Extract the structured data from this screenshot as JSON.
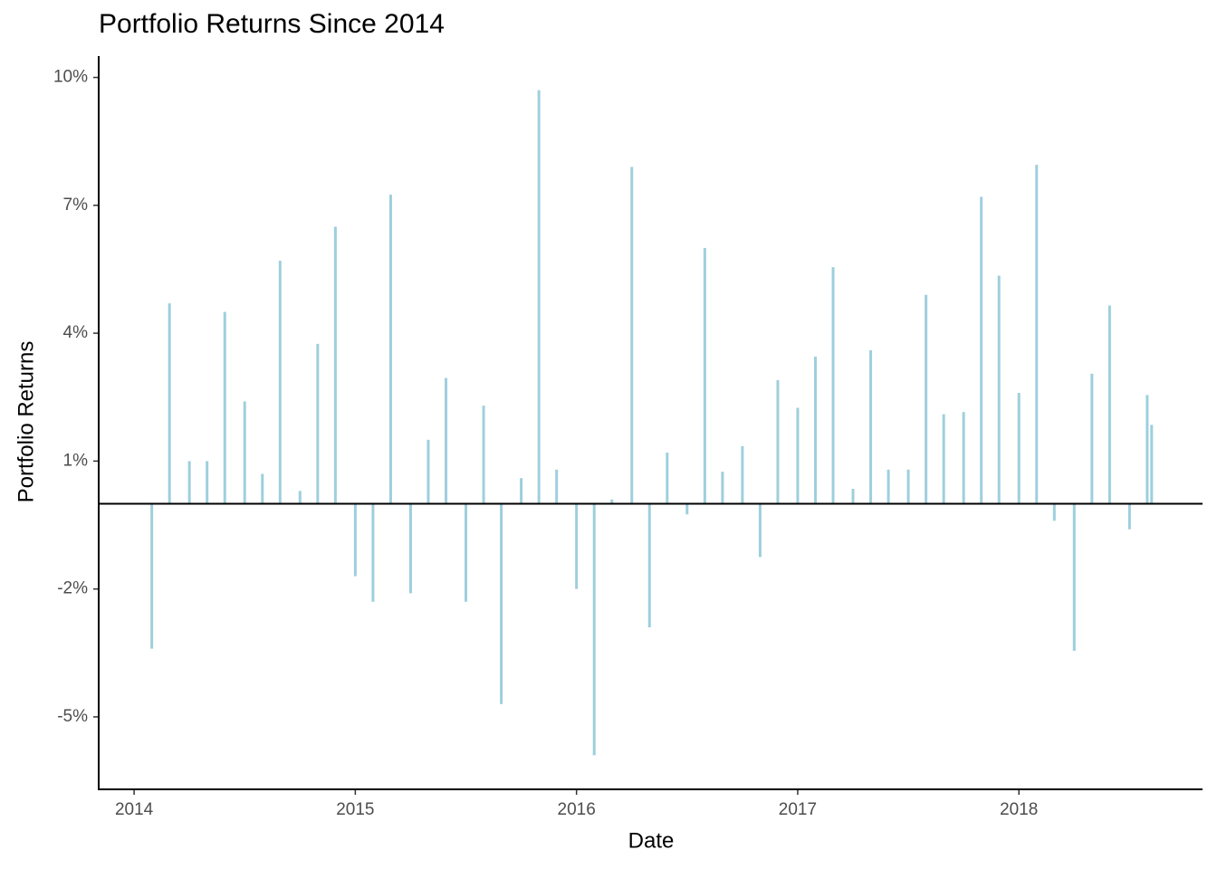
{
  "chart_data": {
    "type": "bar",
    "title": "Portfolio Returns Since 2014",
    "xlabel": "Date",
    "ylabel": "Portfolio Returns",
    "x": [
      2014.08,
      2014.16,
      2014.25,
      2014.33,
      2014.41,
      2014.5,
      2014.58,
      2014.66,
      2014.75,
      2014.83,
      2014.91,
      2015.0,
      2015.08,
      2015.16,
      2015.25,
      2015.33,
      2015.41,
      2015.5,
      2015.58,
      2015.66,
      2015.75,
      2015.83,
      2015.91,
      2016.0,
      2016.08,
      2016.16,
      2016.25,
      2016.33,
      2016.41,
      2016.5,
      2016.58,
      2016.66,
      2016.75,
      2016.83,
      2016.91,
      2017.0,
      2017.08,
      2017.16,
      2017.25,
      2017.33,
      2017.41,
      2017.5,
      2017.58,
      2017.66,
      2017.75,
      2017.83,
      2017.91,
      2018.0,
      2018.08,
      2018.16,
      2018.25,
      2018.33,
      2018.41,
      2018.5,
      2018.58,
      2018.6
    ],
    "values": [
      -3.4,
      4.7,
      1.0,
      1.0,
      4.5,
      2.4,
      0.7,
      5.7,
      0.3,
      3.75,
      6.5,
      -1.7,
      -2.3,
      7.25,
      -2.1,
      1.5,
      2.95,
      -2.3,
      2.3,
      -4.7,
      0.6,
      9.7,
      0.8,
      -2.0,
      -5.9,
      0.1,
      7.9,
      -2.9,
      1.2,
      -0.25,
      6.0,
      0.75,
      1.35,
      -1.25,
      2.9,
      2.25,
      3.45,
      5.55,
      0.35,
      3.6,
      0.8,
      0.8,
      4.9,
      2.1,
      2.15,
      7.2,
      5.35,
      2.6,
      7.95,
      -0.4,
      -3.45,
      3.05,
      4.65,
      -0.6,
      2.55,
      1.85
    ],
    "color": "#9ecfdd",
    "xlim": [
      2013.84,
      2018.83
    ],
    "xticks": [
      2014,
      2015,
      2016,
      2017,
      2018
    ],
    "ylim": [
      -6.7,
      10.5
    ],
    "yticks": [
      {
        "value": -5,
        "label": "-5%"
      },
      {
        "value": -2,
        "label": "-2%"
      },
      {
        "value": 1,
        "label": "1%"
      },
      {
        "value": 4,
        "label": "4%"
      },
      {
        "value": 7,
        "label": "7%"
      },
      {
        "value": 10,
        "label": "10%"
      }
    ],
    "grid": false
  }
}
